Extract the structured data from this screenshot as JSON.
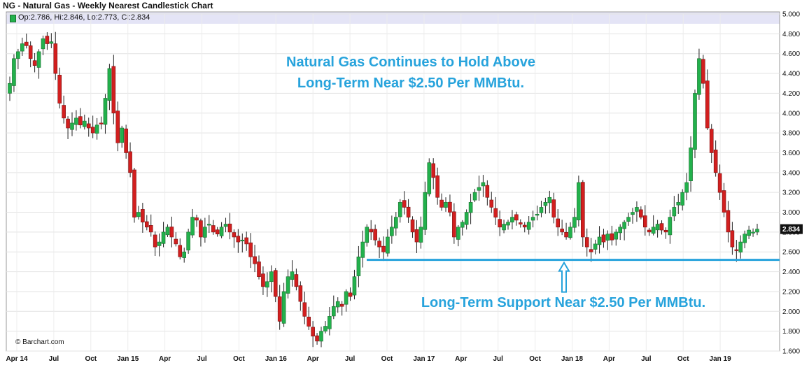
{
  "chart_data": {
    "type": "candlestick",
    "title": "NG - Natural Gas - Weekly Nearest Candlestick Chart",
    "ohlc_label": "Op:2.786, Hi:2.846, Lo:2.773, Cl:2.834",
    "last_value_label": "2.834",
    "credit": "© Barchart.com",
    "ylim": [
      1.6,
      5.0
    ],
    "y_ticks": [
      "5.000",
      "4.800",
      "4.600",
      "4.400",
      "4.200",
      "4.000",
      "3.800",
      "3.600",
      "3.400",
      "3.200",
      "3.000",
      "2.800",
      "2.600",
      "2.400",
      "2.200",
      "2.000",
      "1.800",
      "1.600"
    ],
    "x_ticks": [
      "Apr 14",
      "Jul",
      "Oct",
      "Jan 15",
      "Apr",
      "Jul",
      "Oct",
      "Jan 16",
      "Apr",
      "Jul",
      "Oct",
      "Jan 17",
      "Apr",
      "Jul",
      "Oct",
      "Jan 18",
      "Apr",
      "Jul",
      "Oct",
      "Jan 19"
    ],
    "support_level": 2.52,
    "annotations": {
      "headline_line1": "Natural Gas Continues to Hold Above",
      "headline_line2": "Long-Term Near $2.50 Per MMBtu.",
      "support_note": "Long-Term Support Near $2.50 Per MMBtu."
    },
    "weekly_close": [
      4.3,
      4.55,
      4.62,
      4.7,
      4.68,
      4.55,
      4.48,
      4.62,
      4.75,
      4.7,
      4.72,
      4.4,
      4.1,
      3.95,
      3.85,
      3.9,
      3.95,
      3.88,
      3.92,
      3.85,
      3.8,
      3.88,
      3.9,
      4.15,
      4.45,
      4.0,
      3.7,
      3.85,
      3.6,
      3.4,
      2.95,
      3.0,
      2.9,
      2.85,
      2.8,
      2.65,
      2.7,
      2.8,
      2.85,
      2.75,
      2.68,
      2.55,
      2.6,
      2.8,
      2.95,
      2.92,
      2.75,
      2.85,
      2.88,
      2.8,
      2.78,
      2.85,
      2.88,
      2.8,
      2.75,
      2.7,
      2.72,
      2.68,
      2.55,
      2.48,
      2.35,
      2.25,
      2.3,
      2.4,
      2.15,
      1.9,
      2.2,
      2.35,
      2.4,
      2.25,
      2.1,
      1.95,
      1.85,
      1.75,
      1.7,
      1.8,
      1.85,
      1.95,
      2.05,
      2.1,
      2.05,
      2.2,
      2.15,
      2.35,
      2.55,
      2.7,
      2.85,
      2.8,
      2.72,
      2.65,
      2.6,
      2.75,
      2.85,
      2.95,
      3.1,
      3.05,
      2.95,
      2.8,
      2.7,
      2.85,
      3.2,
      3.5,
      3.35,
      3.15,
      3.05,
      3.1,
      3.0,
      2.75,
      2.85,
      2.9,
      3.0,
      3.1,
      3.2,
      3.25,
      3.3,
      3.15,
      3.05,
      2.95,
      2.85,
      2.88,
      2.9,
      2.95,
      2.92,
      2.88,
      2.85,
      2.9,
      2.95,
      2.98,
      3.05,
      3.1,
      3.15,
      2.95,
      2.85,
      2.8,
      2.75,
      2.85,
      2.95,
      3.3,
      2.75,
      2.65,
      2.6,
      2.68,
      2.75,
      2.7,
      2.78,
      2.72,
      2.8,
      2.85,
      2.9,
      2.95,
      3.0,
      3.05,
      2.95,
      2.85,
      2.8,
      2.85,
      2.88,
      2.82,
      2.8,
      2.95,
      3.05,
      3.1,
      3.2,
      3.3,
      3.65,
      4.2,
      4.55,
      4.3,
      3.85,
      3.6,
      3.4,
      3.2,
      3.0,
      2.8,
      2.65,
      2.62,
      2.7,
      2.78,
      2.82,
      2.8,
      2.83
    ]
  }
}
